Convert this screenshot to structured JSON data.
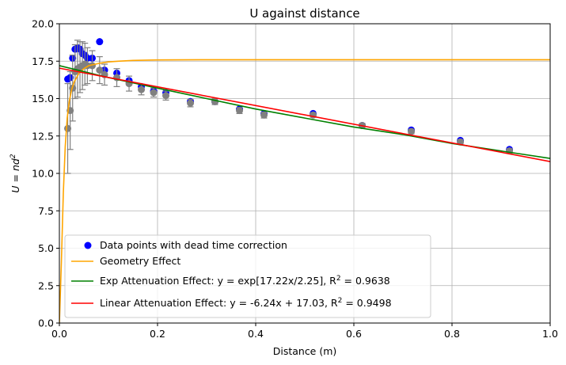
{
  "chart_data": {
    "type": "scatter",
    "title": "U against distance",
    "xlabel": "Distance (m)",
    "ylabel_main": "U = nd",
    "ylabel_sup": "2",
    "xlim": [
      0,
      1.0
    ],
    "ylim": [
      0,
      20
    ],
    "grid": true,
    "legend_placement": "lower-left",
    "x_ticks": [
      0.0,
      0.2,
      0.4,
      0.6,
      0.8,
      1.0
    ],
    "x_tick_labels": [
      "0.0",
      "0.2",
      "0.4",
      "0.6",
      "0.8",
      "1.0"
    ],
    "y_ticks": [
      0,
      2.5,
      5,
      7.5,
      10,
      12.5,
      15,
      17.5,
      20
    ],
    "y_tick_labels": [
      "0.0",
      "2.5",
      "5.0",
      "7.5",
      "10.0",
      "12.5",
      "15.0",
      "17.5",
      "20.0"
    ],
    "colors": {
      "dead_time_points": "#0000ff",
      "raw_points": "#808080",
      "error_bars": "#808080",
      "geometry": "#ffa500",
      "exp": "#008000",
      "linear": "#ff0000",
      "grid": "#b0b0b0"
    },
    "series": [
      {
        "name": "Data points with dead time correction",
        "kind": "scatter",
        "x": [
          0.017,
          0.022,
          0.027,
          0.032,
          0.037,
          0.042,
          0.047,
          0.052,
          0.057,
          0.067,
          0.082,
          0.092,
          0.117,
          0.142,
          0.167,
          0.192,
          0.217,
          0.267,
          0.317,
          0.367,
          0.417,
          0.517,
          0.617,
          0.717,
          0.817,
          0.917
        ],
        "y": [
          16.3,
          16.4,
          17.7,
          18.3,
          18.4,
          18.3,
          18.0,
          17.9,
          17.7,
          17.7,
          18.8,
          16.9,
          16.7,
          16.2,
          15.8,
          15.5,
          15.4,
          14.8,
          14.8,
          14.3,
          14.0,
          14.0,
          13.2,
          12.9,
          12.2,
          11.6
        ]
      },
      {
        "name": "",
        "kind": "scatter-errorbar",
        "x": [
          0.017,
          0.022,
          0.027,
          0.032,
          0.037,
          0.042,
          0.047,
          0.052,
          0.057,
          0.067,
          0.082,
          0.092,
          0.117,
          0.142,
          0.167,
          0.192,
          0.217,
          0.267,
          0.317,
          0.367,
          0.417,
          0.517,
          0.617,
          0.717,
          0.817,
          0.917
        ],
        "y": [
          13.0,
          14.2,
          15.7,
          16.8,
          17.0,
          17.1,
          17.2,
          17.3,
          17.2,
          17.2,
          16.9,
          16.6,
          16.4,
          16.0,
          15.6,
          15.4,
          15.2,
          14.7,
          14.8,
          14.2,
          13.9,
          13.9,
          13.2,
          12.8,
          12.1,
          11.5
        ],
        "yerr": [
          3.0,
          2.6,
          2.2,
          1.8,
          1.9,
          1.7,
          1.6,
          1.4,
          1.2,
          1.0,
          0.9,
          0.7,
          0.6,
          0.5,
          0.35,
          0.3,
          0.3,
          0.25,
          0.2,
          0.2,
          0.2,
          0.15,
          0.15,
          0.15,
          0.15,
          0.15
        ]
      },
      {
        "name": "Geometry Effect",
        "kind": "line",
        "x": [
          0.0,
          0.004,
          0.008,
          0.012,
          0.016,
          0.02,
          0.025,
          0.03,
          0.04,
          0.05,
          0.06,
          0.08,
          0.1,
          0.12,
          0.15,
          0.2,
          0.3,
          0.5,
          0.7,
          1.0
        ],
        "y": [
          0.0,
          4.0,
          8.7,
          11.8,
          13.7,
          14.8,
          15.6,
          16.1,
          16.7,
          17.0,
          17.2,
          17.35,
          17.45,
          17.5,
          17.55,
          17.58,
          17.6,
          17.6,
          17.6,
          17.6
        ]
      },
      {
        "name": "Exp Attenuation Effect: y = exp[17.22x/2.25], R",
        "name_sup": "2",
        "name_tail": " = 0.9638",
        "kind": "line",
        "x": [
          0.0,
          0.1,
          0.2,
          0.3,
          0.4,
          0.5,
          0.6,
          0.7,
          0.8,
          0.9,
          1.0
        ],
        "y": [
          17.2,
          16.4,
          15.7,
          15.0,
          14.3,
          13.7,
          13.1,
          12.6,
          12.0,
          11.5,
          11.0
        ]
      },
      {
        "name": "Linear Attenuation Effect: y = -6.24x + 17.03, R",
        "name_sup": "2",
        "name_tail": " = 0.9498",
        "kind": "line",
        "x": [
          0.0,
          1.0
        ],
        "y": [
          17.03,
          10.79
        ]
      }
    ]
  }
}
